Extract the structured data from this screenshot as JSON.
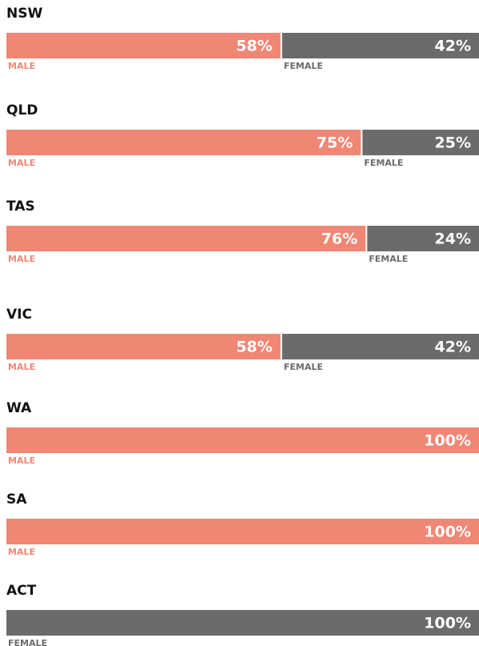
{
  "chart_data": {
    "type": "stacked-bar-100",
    "categories": [
      "NSW",
      "QLD",
      "TAS",
      "VIC",
      "WA",
      "SA",
      "ACT"
    ],
    "xlim": [
      0,
      100
    ],
    "series": [
      {
        "name": "MALE",
        "color": "#f08674",
        "values": [
          58,
          75,
          76,
          58,
          100,
          100,
          null
        ],
        "value_labels": [
          "58%",
          "75%",
          "76%",
          "58%",
          "100%",
          "100%",
          null
        ]
      },
      {
        "name": "FEMALE",
        "color": "#6b6b6b",
        "values": [
          42,
          25,
          24,
          42,
          null,
          null,
          100
        ],
        "value_labels": [
          "42%",
          "25%",
          "24%",
          "42%",
          null,
          null,
          "100%"
        ]
      }
    ]
  }
}
